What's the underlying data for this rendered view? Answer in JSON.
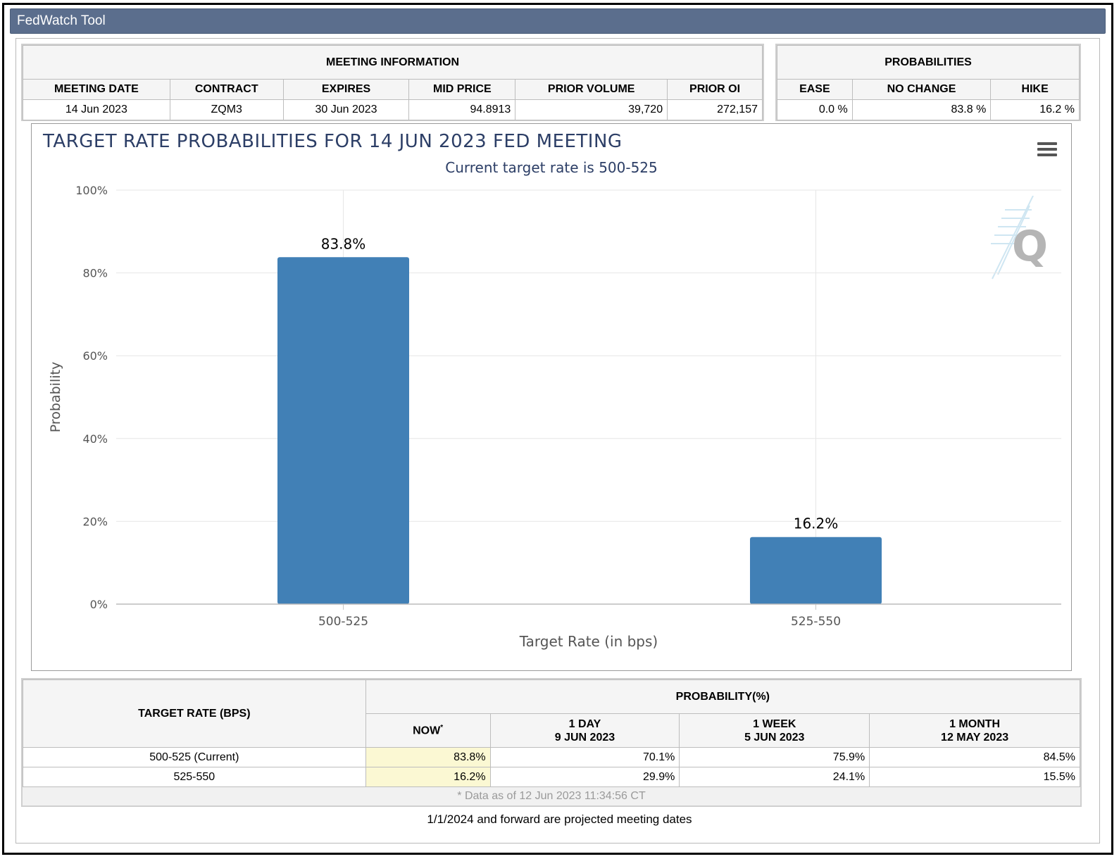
{
  "window": {
    "title": "FedWatch Tool"
  },
  "meeting_info": {
    "header": "MEETING INFORMATION",
    "columns": [
      "MEETING DATE",
      "CONTRACT",
      "EXPIRES",
      "MID PRICE",
      "PRIOR VOLUME",
      "PRIOR OI"
    ],
    "row": {
      "meeting_date": "14 Jun 2023",
      "contract": "ZQM3",
      "expires": "30 Jun 2023",
      "mid_price": "94.8913",
      "prior_volume": "39,720",
      "prior_oi": "272,157"
    }
  },
  "probabilities": {
    "header": "PROBABILITIES",
    "columns": [
      "EASE",
      "NO CHANGE",
      "HIKE"
    ],
    "row": {
      "ease": "0.0 %",
      "no_change": "83.8 %",
      "hike": "16.2 %"
    }
  },
  "chart_data": {
    "type": "bar",
    "title": "TARGET RATE PROBABILITIES FOR 14 JUN 2023 FED MEETING",
    "subtitle": "Current target rate is 500-525",
    "xlabel": "Target Rate (in bps)",
    "ylabel": "Probability",
    "categories": [
      "500-525",
      "525-550"
    ],
    "values": [
      83.8,
      16.2
    ],
    "data_labels": [
      "83.8%",
      "16.2%"
    ],
    "ylim": [
      0,
      100
    ],
    "yticks": [
      0,
      20,
      40,
      60,
      80,
      100
    ],
    "ytick_labels": [
      "0%",
      "20%",
      "40%",
      "60%",
      "80%",
      "100%"
    ],
    "grid": true,
    "bar_color": "#4180b6"
  },
  "history": {
    "target_rate_header": "TARGET RATE (BPS)",
    "probability_header": "PROBABILITY(%)",
    "columns": [
      {
        "line1": "NOW",
        "line2": "",
        "asterisk": "*"
      },
      {
        "line1": "1 DAY",
        "line2": "9 JUN 2023",
        "asterisk": ""
      },
      {
        "line1": "1 WEEK",
        "line2": "5 JUN 2023",
        "asterisk": ""
      },
      {
        "line1": "1 MONTH",
        "line2": "12 MAY 2023",
        "asterisk": ""
      }
    ],
    "rows": [
      {
        "rate": "500-525 (Current)",
        "now": "83.8%",
        "day": "70.1%",
        "week": "75.9%",
        "month": "84.5%"
      },
      {
        "rate": "525-550",
        "now": "16.2%",
        "day": "29.9%",
        "week": "24.1%",
        "month": "15.5%"
      }
    ],
    "data_note": "* Data as of 12 Jun 2023 11:34:56 CT"
  },
  "footer": {
    "note": "1/1/2024 and forward are projected meeting dates"
  },
  "icons": {
    "menu": "hamburger-menu-icon",
    "watermark": "q-logo-icon"
  }
}
